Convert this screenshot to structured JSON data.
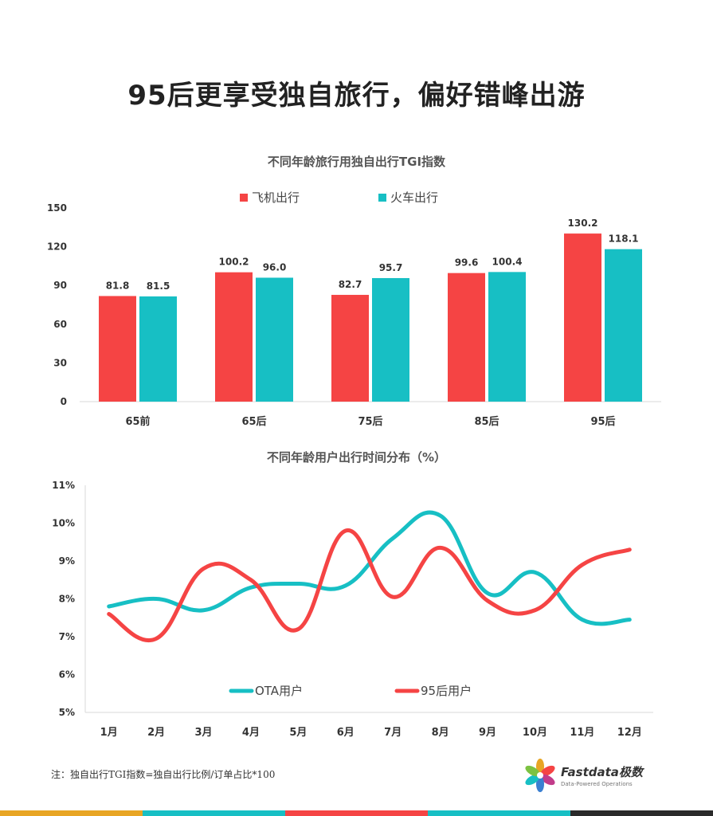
{
  "page_title": "95后更享受独自旅行，偏好错峰出游",
  "note": "注：独自出行TGI指数=独自出行比例/订单占比*100",
  "logo": {
    "name": "Fastdata极数",
    "tagline": "Data-Powered Operations"
  },
  "colors": {
    "red": "#f54444",
    "teal": "#17bfc4",
    "bottom_bar": [
      "#e8a524",
      "#17bfc4",
      "#f54444",
      "#17bfc4",
      "#2a2a2a"
    ]
  },
  "chart_data": [
    {
      "type": "bar",
      "title": "不同年龄旅行用独自出行TGI指数",
      "categories": [
        "65前",
        "65后",
        "75后",
        "85后",
        "95后"
      ],
      "series": [
        {
          "name": "飞机出行",
          "color": "#f54444",
          "values": [
            81.8,
            100.2,
            82.7,
            99.6,
            130.2
          ]
        },
        {
          "name": "火车出行",
          "color": "#17bfc4",
          "values": [
            81.5,
            96.0,
            95.7,
            100.4,
            118.1
          ]
        }
      ],
      "value_labels": [
        [
          "81.8",
          "100.2",
          "82.7",
          "99.6",
          "130.2"
        ],
        [
          "81.5",
          "96.0",
          "95.7",
          "100.4",
          "118.1"
        ]
      ],
      "yticks": [
        0,
        30,
        60,
        90,
        120,
        150
      ],
      "ylim": [
        0,
        150
      ],
      "legend": "top-center",
      "grid": false
    },
    {
      "type": "line",
      "title": "不同年龄用户出行时间分布（%）",
      "categories": [
        "1月",
        "2月",
        "3月",
        "4月",
        "5月",
        "6月",
        "7月",
        "8月",
        "9月",
        "10月",
        "11月",
        "12月"
      ],
      "series": [
        {
          "name": "OTA用户",
          "color": "#17bfc4",
          "values": [
            7.8,
            8.0,
            7.7,
            8.3,
            8.4,
            8.35,
            9.6,
            10.2,
            8.15,
            8.7,
            7.45,
            7.45
          ]
        },
        {
          "name": "95后用户",
          "color": "#f54444",
          "values": [
            7.6,
            6.95,
            8.8,
            8.5,
            7.2,
            9.8,
            8.05,
            9.35,
            7.95,
            7.7,
            8.9,
            9.3
          ]
        }
      ],
      "yticks": [
        "5%",
        "6%",
        "7%",
        "8%",
        "9%",
        "10%",
        "11%"
      ],
      "ylim": [
        5,
        11
      ],
      "legend": "bottom-center",
      "grid": false
    }
  ]
}
